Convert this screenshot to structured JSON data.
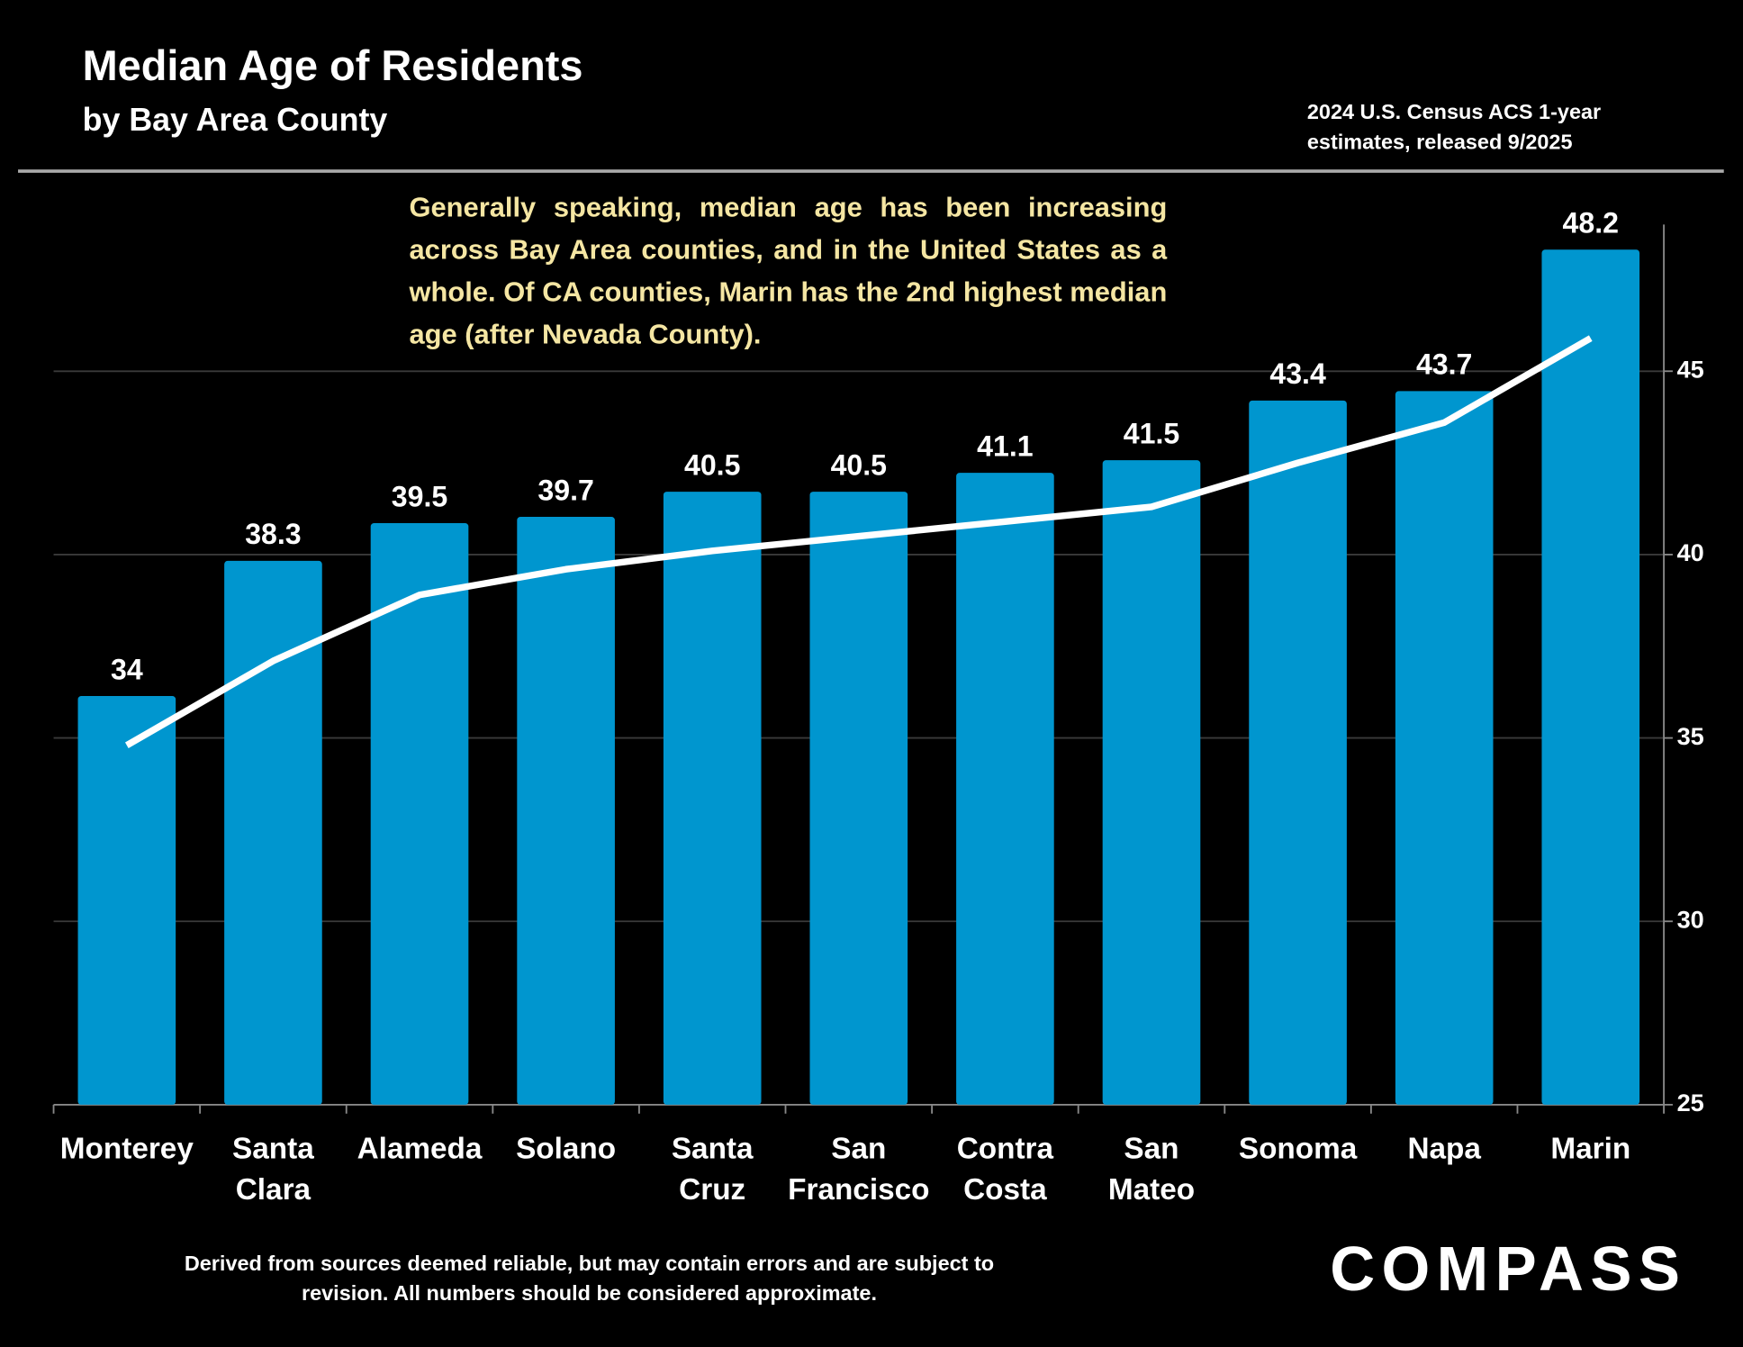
{
  "chart_data": {
    "type": "bar",
    "title": "Median Age of Residents",
    "subtitle": "by Bay Area County",
    "source": "2024 U.S. Census ACS 1-year estimates, released 9/2025",
    "annotation": "Generally speaking, median age has been increasing across Bay Area counties, and in the United States as a whole. Of CA counties, Marin has the 2nd highest median age (after Nevada County).",
    "footnote": "Derived from sources deemed reliable, but may contain errors and are subject to revision.  All numbers should be considered approximate.",
    "brand": "COMPASS",
    "categories": [
      "Monterey",
      "Santa Clara",
      "Alameda",
      "Solano",
      "Santa Cruz",
      "San Francisco",
      "Contra Costa",
      "San Mateo",
      "Sonoma",
      "Napa",
      "Marin"
    ],
    "series": [
      {
        "type": "bar",
        "color": "#0096cf",
        "values": [
          34,
          38.3,
          39.5,
          39.7,
          40.5,
          40.5,
          41.1,
          41.5,
          43.4,
          43.7,
          48.2
        ]
      },
      {
        "type": "line",
        "color": "#ffffff",
        "axis": "y2",
        "values": [
          34.8,
          37.1,
          38.9,
          39.6,
          40.1,
          40.5,
          40.9,
          41.3,
          42.5,
          43.6,
          45.9
        ]
      }
    ],
    "ylim": [
      21,
      49
    ],
    "y2lim": [
      25,
      49
    ],
    "y2ticks": [
      25,
      30,
      35,
      40,
      45
    ],
    "grid": true
  }
}
